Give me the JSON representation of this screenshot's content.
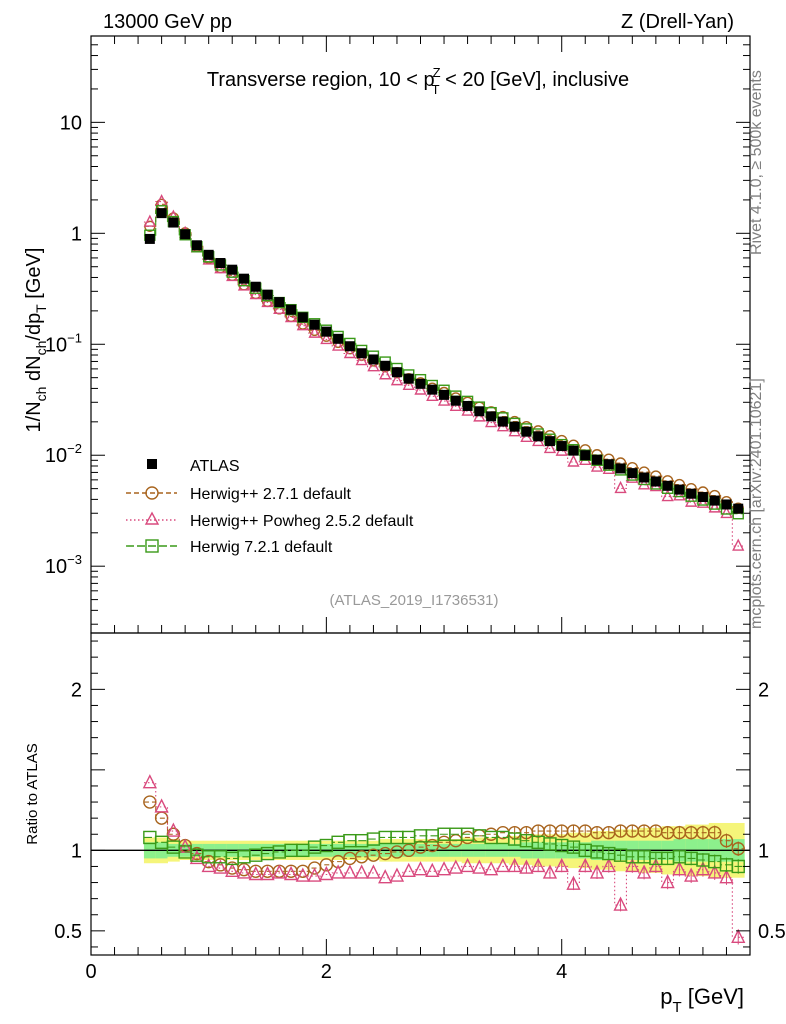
{
  "header": {
    "left": "13000 GeV pp",
    "right": "Z (Drell-Yan)"
  },
  "plot": {
    "title_pre": "Transverse region, 10 < p",
    "title_sup": "Z",
    "title_sub": "T",
    "title_post": " < 20 [GeV], inclusive",
    "ylabel_main": "1/N_ch dN_ch/dp_T [GeV]",
    "ylabel_ratio": "Ratio to ATLAS",
    "xlabel": "p_T [GeV]",
    "analysis_id": "(ATLAS_2019_I1736531)"
  },
  "side": {
    "rivet": "Rivet 4.1.0, ≥ 500k events",
    "site": "mcplots.cern.ch [arXiv:2401.10621]"
  },
  "legend": [
    {
      "label": "ATLAS"
    },
    {
      "label": "Herwig++ 2.7.1 default"
    },
    {
      "label": "Herwig++ Powheg 2.5.2 default"
    },
    {
      "label": "Herwig 7.2.1 default"
    }
  ],
  "colors": {
    "data": "#000000",
    "herwigpp": "#a8641e",
    "powheg": "#d94a7e",
    "herwig7": "#3a9a18",
    "band_inner": "#8cf08c",
    "band_outer": "#f5f57a"
  },
  "chart_data": {
    "type": "scatter",
    "x": [
      0.5,
      0.6,
      0.7,
      0.8,
      0.9,
      1.0,
      1.1,
      1.2,
      1.3,
      1.4,
      1.5,
      1.6,
      1.7,
      1.8,
      1.9,
      2.0,
      2.1,
      2.2,
      2.3,
      2.4,
      2.5,
      2.6,
      2.7,
      2.8,
      2.9,
      3.0,
      3.1,
      3.2,
      3.3,
      3.4,
      3.5,
      3.6,
      3.7,
      3.8,
      3.9,
      4.0,
      4.1,
      4.2,
      4.3,
      4.4,
      4.5,
      4.6,
      4.7,
      4.8,
      4.9,
      5.0,
      5.1,
      5.2,
      5.3,
      5.4,
      5.5
    ],
    "xlim": [
      0,
      5.6
    ],
    "main": {
      "ylim": [
        0.00025,
        60
      ],
      "yscale": "log",
      "yticks": [
        {
          "v": 0.001,
          "b": "10",
          "e": "−3"
        },
        {
          "v": 0.01,
          "b": "10",
          "e": "−2"
        },
        {
          "v": 0.1,
          "b": "10",
          "e": "−1"
        },
        {
          "v": 1,
          "b": "1",
          "e": ""
        },
        {
          "v": 10,
          "b": "10",
          "e": ""
        }
      ]
    },
    "ratio": {
      "ylim": [
        0.35,
        2.35
      ],
      "yticks": [
        0.5,
        1,
        2
      ],
      "yticklabels": [
        "0.5",
        "1",
        "2"
      ]
    },
    "xticks": [
      0,
      2,
      4
    ],
    "xticklabels": [
      "0",
      "2",
      "4"
    ],
    "series": [
      {
        "name": "ATLAS",
        "values": [
          0.89,
          1.52,
          1.25,
          0.98,
          0.78,
          0.64,
          0.54,
          0.47,
          0.39,
          0.33,
          0.28,
          0.24,
          0.205,
          0.175,
          0.15,
          0.13,
          0.112,
          0.096,
          0.083,
          0.073,
          0.064,
          0.056,
          0.049,
          0.044,
          0.039,
          0.035,
          0.031,
          0.0278,
          0.0249,
          0.0224,
          0.0201,
          0.0181,
          0.0163,
          0.0148,
          0.0134,
          0.0121,
          0.011,
          0.01,
          0.0091,
          0.0083,
          0.0076,
          0.0069,
          0.0063,
          0.0058,
          0.0053,
          0.0049,
          0.0045,
          0.0042,
          0.0039,
          0.0036,
          0.0033
        ]
      },
      {
        "name": "Herwig++ 2.7.1 default",
        "ratio": [
          1.3,
          1.2,
          1.1,
          1.03,
          0.98,
          0.93,
          0.91,
          0.89,
          0.88,
          0.87,
          0.87,
          0.87,
          0.87,
          0.87,
          0.89,
          0.91,
          0.93,
          0.95,
          0.96,
          0.97,
          0.98,
          0.99,
          1.0,
          1.02,
          1.03,
          1.05,
          1.06,
          1.08,
          1.09,
          1.1,
          1.11,
          1.11,
          1.11,
          1.12,
          1.12,
          1.12,
          1.12,
          1.12,
          1.11,
          1.11,
          1.12,
          1.12,
          1.12,
          1.12,
          1.11,
          1.11,
          1.11,
          1.11,
          1.11,
          1.06,
          1.01
        ]
      },
      {
        "name": "Herwig++ Powheg 2.5.2 default",
        "ratio": [
          1.42,
          1.27,
          1.12,
          1.02,
          0.95,
          0.9,
          0.89,
          0.87,
          0.86,
          0.85,
          0.85,
          0.86,
          0.85,
          0.84,
          0.84,
          0.85,
          0.86,
          0.86,
          0.86,
          0.86,
          0.83,
          0.84,
          0.87,
          0.88,
          0.87,
          0.88,
          0.89,
          0.9,
          0.89,
          0.88,
          0.9,
          0.9,
          0.89,
          0.9,
          0.86,
          0.9,
          0.79,
          0.9,
          0.86,
          0.9,
          0.66,
          0.9,
          0.86,
          0.9,
          0.8,
          0.88,
          0.84,
          0.88,
          0.86,
          0.83,
          0.46
        ]
      },
      {
        "name": "Herwig 7.2.1 default",
        "ratio": [
          1.08,
          1.05,
          1.02,
          0.99,
          0.97,
          0.96,
          0.96,
          0.95,
          0.96,
          0.97,
          0.98,
          0.99,
          1.0,
          1.0,
          1.02,
          1.03,
          1.05,
          1.06,
          1.06,
          1.07,
          1.08,
          1.08,
          1.08,
          1.09,
          1.09,
          1.1,
          1.1,
          1.1,
          1.09,
          1.08,
          1.08,
          1.07,
          1.06,
          1.05,
          1.04,
          1.03,
          1.02,
          1.0,
          0.99,
          0.98,
          0.97,
          0.96,
          0.96,
          0.95,
          0.95,
          0.96,
          0.95,
          0.94,
          0.93,
          0.91,
          0.9
        ]
      }
    ],
    "band_inner": [
      0.05,
      0.05,
      0.04,
      0.04,
      0.04,
      0.04,
      0.04,
      0.04,
      0.04,
      0.04,
      0.04,
      0.04,
      0.04,
      0.04,
      0.04,
      0.04,
      0.04,
      0.04,
      0.04,
      0.04,
      0.04,
      0.04,
      0.04,
      0.04,
      0.04,
      0.04,
      0.04,
      0.04,
      0.04,
      0.04,
      0.04,
      0.04,
      0.05,
      0.05,
      0.05,
      0.05,
      0.05,
      0.05,
      0.06,
      0.06,
      0.06,
      0.06,
      0.06,
      0.06,
      0.06,
      0.07,
      0.07,
      0.07,
      0.07,
      0.07,
      0.07
    ],
    "band_outer": [
      0.08,
      0.08,
      0.07,
      0.06,
      0.06,
      0.06,
      0.06,
      0.06,
      0.06,
      0.06,
      0.06,
      0.06,
      0.06,
      0.06,
      0.06,
      0.06,
      0.06,
      0.06,
      0.06,
      0.06,
      0.07,
      0.07,
      0.07,
      0.07,
      0.07,
      0.07,
      0.07,
      0.08,
      0.08,
      0.08,
      0.08,
      0.09,
      0.09,
      0.1,
      0.1,
      0.1,
      0.11,
      0.11,
      0.12,
      0.12,
      0.13,
      0.13,
      0.14,
      0.14,
      0.15,
      0.15,
      0.16,
      0.16,
      0.17,
      0.17,
      0.17
    ]
  }
}
